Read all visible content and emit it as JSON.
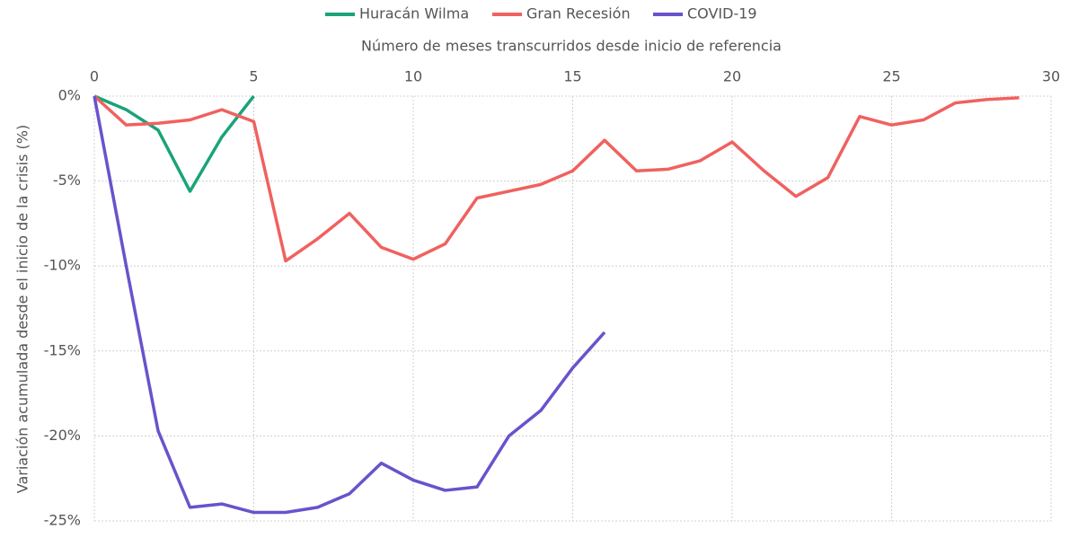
{
  "chart_data": {
    "type": "line",
    "xlabel": "Número de meses transcurridos desde inicio de referencia",
    "ylabel": "Variación acumulada desde el inicio de la crisis (%)",
    "x": [
      0,
      1,
      2,
      3,
      4,
      5,
      6,
      7,
      8,
      9,
      10,
      11,
      12,
      13,
      14,
      15,
      16,
      17,
      18,
      19,
      20,
      21,
      22,
      23,
      24,
      25,
      26,
      27,
      28,
      29
    ],
    "series": [
      {
        "name": "Huracán Wilma",
        "color": "#1aa37a",
        "values": [
          0,
          -0.8,
          -2.0,
          -5.6,
          -2.4,
          0,
          null,
          null,
          null,
          null,
          null,
          null,
          null,
          null,
          null,
          null,
          null,
          null,
          null,
          null,
          null,
          null,
          null,
          null,
          null,
          null,
          null,
          null,
          null,
          null
        ]
      },
      {
        "name": "Gran Recesión",
        "color": "#f0615f",
        "values": [
          0,
          -1.7,
          -1.6,
          -1.4,
          -0.8,
          -1.5,
          -9.7,
          -8.4,
          -6.9,
          -8.9,
          -9.6,
          -8.7,
          -6.0,
          -5.6,
          -5.2,
          -4.4,
          -2.6,
          -4.4,
          -4.3,
          -3.8,
          -2.7,
          -4.4,
          -5.9,
          -4.8,
          -1.2,
          -1.7,
          -1.4,
          -0.4,
          -0.2,
          -0.1
        ]
      },
      {
        "name": "COVID-19",
        "color": "#6a52cc",
        "values": [
          0,
          -10.0,
          -19.7,
          -24.2,
          -24.0,
          -24.5,
          -24.5,
          -24.2,
          -23.4,
          -21.6,
          -22.6,
          -23.2,
          -23.0,
          -20.0,
          -18.5,
          -16.0,
          -13.9,
          null,
          null,
          null,
          null,
          null,
          null,
          null,
          null,
          null,
          null,
          null,
          null,
          null
        ]
      }
    ],
    "xlim": [
      0,
      30
    ],
    "xticks": [
      0,
      5,
      10,
      15,
      20,
      25,
      30
    ],
    "ylim": [
      -25,
      0
    ],
    "yticks": [
      {
        "value": 0,
        "label": "0%"
      },
      {
        "value": -5,
        "label": "-5%"
      },
      {
        "value": -10,
        "label": "-10%"
      },
      {
        "value": -15,
        "label": "-15%"
      },
      {
        "value": -20,
        "label": "-20%"
      },
      {
        "value": -25,
        "label": "-25%"
      }
    ],
    "grid": true
  }
}
